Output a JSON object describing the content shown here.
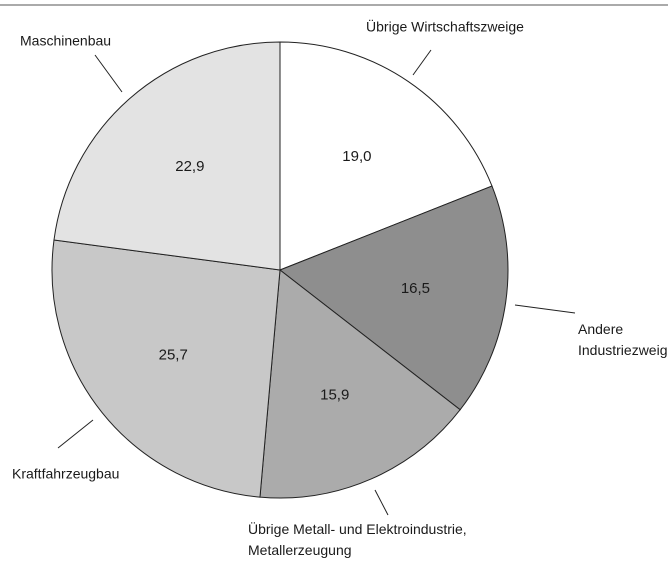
{
  "chart_data": {
    "type": "pie",
    "categories": [
      "Übrige Wirtschaftszweige",
      "Andere\nIndustriezweige",
      "Übrige Metall- und Elektroindustrie,\nMetallerzeugung",
      "Kraftfahrzeugbau",
      "Maschinenbau"
    ],
    "values": [
      19.0,
      16.5,
      15.9,
      25.7,
      22.9
    ],
    "value_labels": [
      "19,0",
      "16,5",
      "15,9",
      "25,7",
      "22,9"
    ],
    "colors": [
      "#ffffff",
      "#8e8e8e",
      "#ababab",
      "#c8c8c8",
      "#e3e3e3"
    ]
  }
}
